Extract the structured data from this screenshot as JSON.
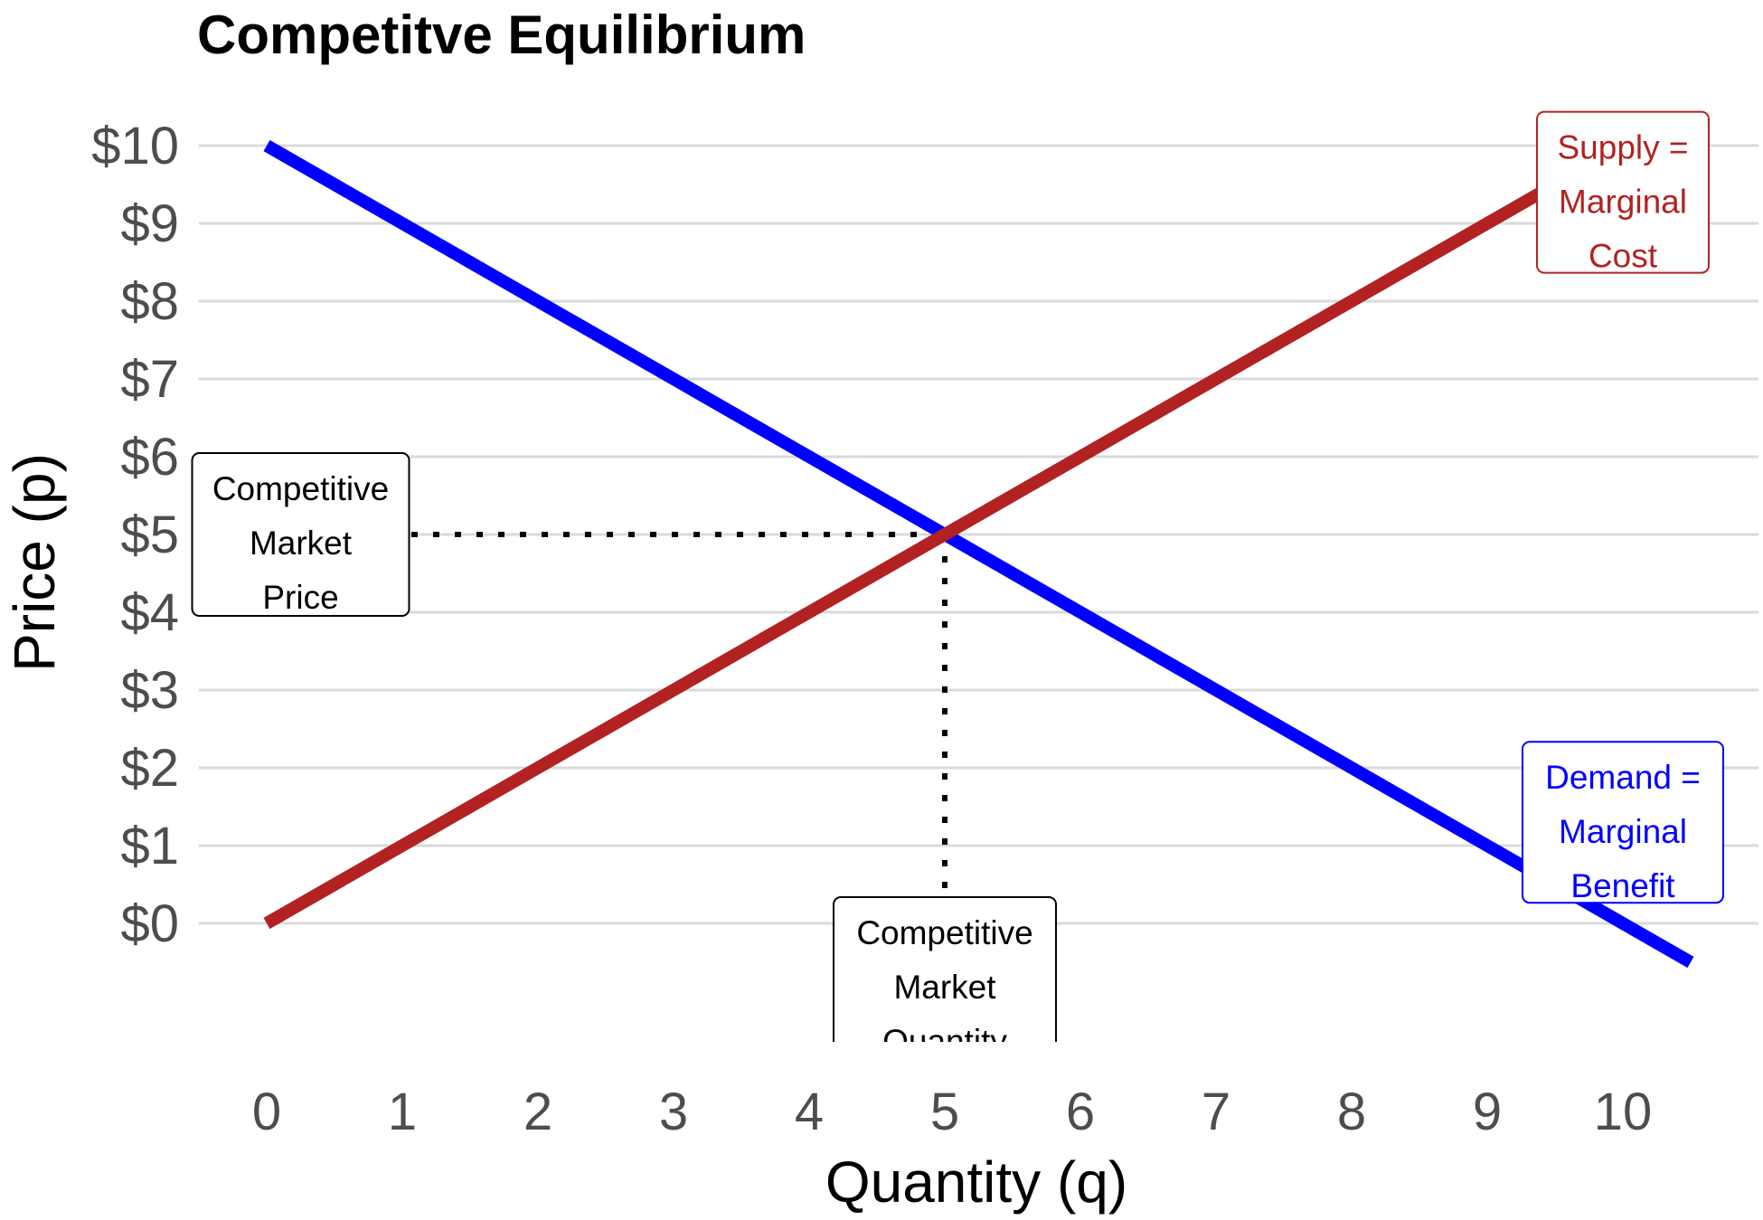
{
  "chart_data": {
    "type": "line",
    "title": "Competitve Equilibrium",
    "xlabel": "Quantity (q)",
    "ylabel": "Price (p)",
    "xlim": [
      -0.5,
      11
    ],
    "ylim": [
      -1.5,
      10.5
    ],
    "x_ticks": [
      0,
      1,
      2,
      3,
      4,
      5,
      6,
      7,
      8,
      9,
      10
    ],
    "x_tick_labels": [
      "0",
      "1",
      "2",
      "3",
      "4",
      "5",
      "6",
      "7",
      "8",
      "9",
      "10"
    ],
    "y_ticks": [
      0,
      1,
      2,
      3,
      4,
      5,
      6,
      7,
      8,
      9,
      10
    ],
    "y_tick_labels": [
      "$0",
      "$1",
      "$2",
      "$3",
      "$4",
      "$5",
      "$6",
      "$7",
      "$8",
      "$9",
      "$10"
    ],
    "grid": "horizontal major gridlines only",
    "series": [
      {
        "key": "demand",
        "color": "#0000ff",
        "x": [
          0,
          10.5
        ],
        "y": [
          10,
          -0.5
        ]
      },
      {
        "key": "supply",
        "color": "#b22222",
        "x": [
          0,
          10
        ],
        "y": [
          0,
          10
        ]
      }
    ],
    "equilibrium": {
      "x": 5,
      "y": 5
    },
    "annotations": {
      "supply": {
        "lines": [
          "Supply =",
          "Marginal",
          "Cost"
        ],
        "color": "#b22222",
        "x": 10,
        "y": 9.4
      },
      "demand": {
        "lines": [
          "Demand =",
          "Marginal",
          "Benefit"
        ],
        "color": "#0000ff",
        "x": 10,
        "y": 1.3
      },
      "price": {
        "lines": [
          "Competitive",
          "Market",
          "Price"
        ],
        "color": "#000000",
        "x": 0.25,
        "y": 5
      },
      "quantity": {
        "lines": [
          "Competitive",
          "Market",
          "Quantity"
        ],
        "color": "#000000",
        "x": 5,
        "y": -0.8
      }
    }
  }
}
